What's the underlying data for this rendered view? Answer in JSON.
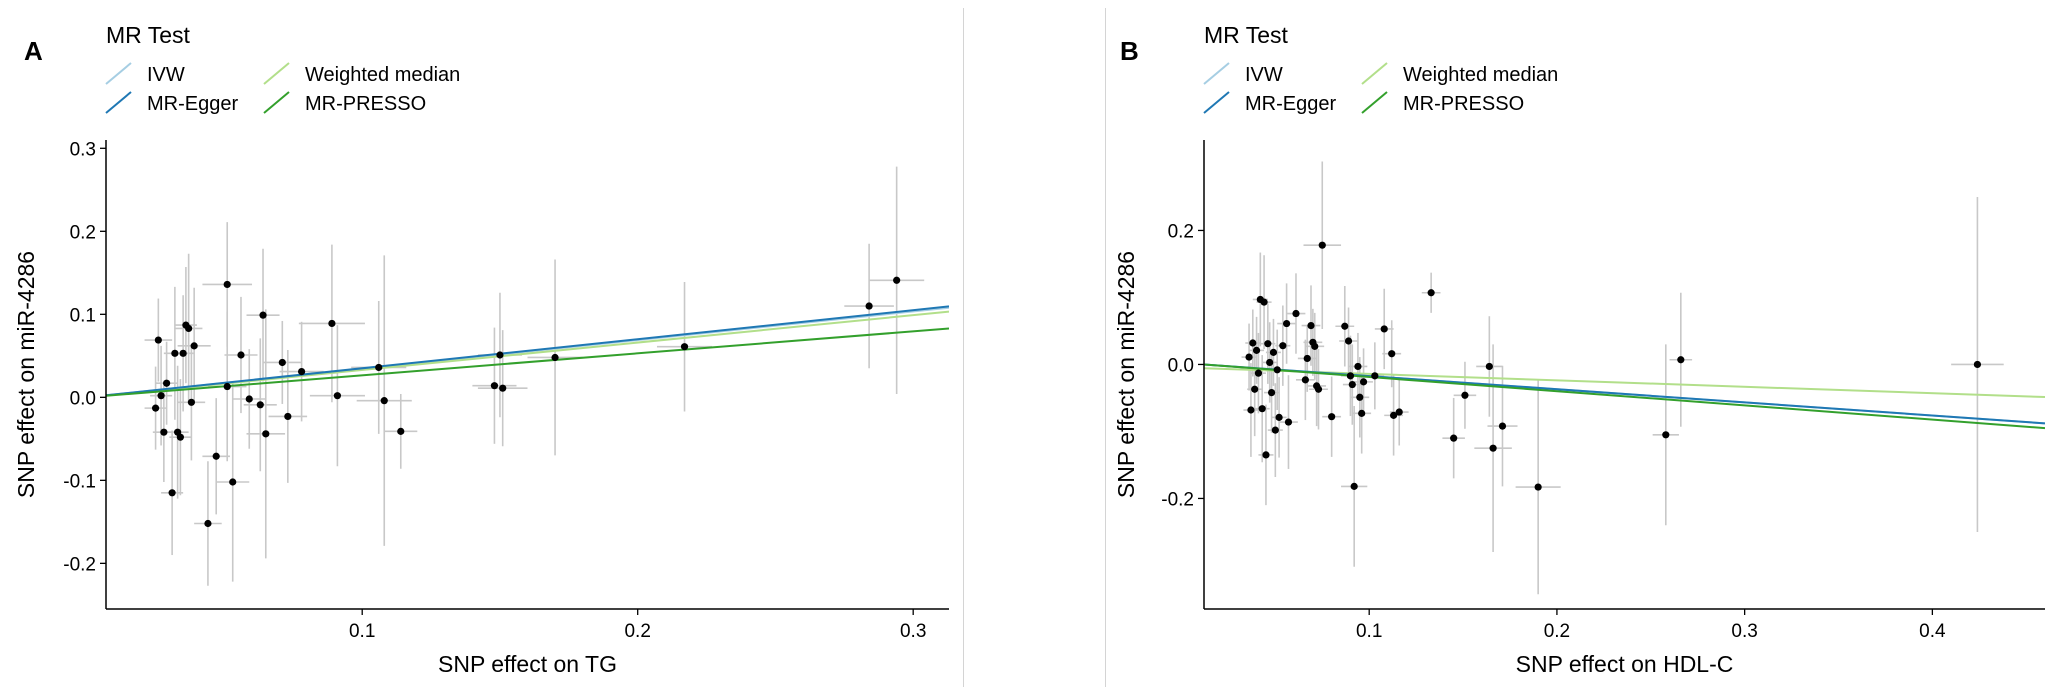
{
  "legend": {
    "title": "MR Test",
    "items": [
      {
        "label": "IVW",
        "color": "#a6cee3"
      },
      {
        "label": "Weighted median",
        "color": "#b2df8a"
      },
      {
        "label": "MR-Egger",
        "color": "#1f78b4"
      },
      {
        "label": "MR-PRESSO",
        "color": "#33a02c"
      }
    ]
  },
  "chart_data": [
    {
      "type": "scatter",
      "panel_label": "A",
      "xlabel": "SNP effect on TG",
      "ylabel": "SNP effect on miR-4286",
      "xlim": [
        0.007,
        0.313
      ],
      "ylim": [
        -0.255,
        0.31
      ],
      "xticks": [
        0.1,
        0.2,
        0.3
      ],
      "yticks": [
        -0.2,
        -0.1,
        0.0,
        0.1,
        0.2,
        0.3
      ],
      "grid": false,
      "legend_position": "top-left",
      "error_bar_color": "#c8c8c8",
      "lines": [
        {
          "name": "IVW",
          "intercept": 0,
          "slope": 0.345,
          "color": "#a6cee3"
        },
        {
          "name": "Weighted median",
          "intercept": 0,
          "slope": 0.33,
          "color": "#b2df8a"
        },
        {
          "name": "MR-Egger",
          "intercept": 0,
          "slope": 0.35,
          "color": "#1f78b4"
        },
        {
          "name": "MR-PRESSO",
          "intercept": 0,
          "slope": 0.265,
          "color": "#33a02c"
        }
      ],
      "points": [
        {
          "x": 0.025,
          "y": -0.013,
          "xerr": 0.004,
          "yerr": 0.05
        },
        {
          "x": 0.026,
          "y": 0.069,
          "xerr": 0.005,
          "yerr": 0.05
        },
        {
          "x": 0.027,
          "y": 0.002,
          "xerr": 0.004,
          "yerr": 0.06
        },
        {
          "x": 0.028,
          "y": -0.042,
          "xerr": 0.004,
          "yerr": 0.06
        },
        {
          "x": 0.029,
          "y": 0.017,
          "xerr": 0.004,
          "yerr": 0.05
        },
        {
          "x": 0.031,
          "y": -0.115,
          "xerr": 0.004,
          "yerr": 0.075
        },
        {
          "x": 0.032,
          "y": 0.053,
          "xerr": 0.004,
          "yerr": 0.08
        },
        {
          "x": 0.033,
          "y": -0.042,
          "xerr": 0.004,
          "yerr": 0.08
        },
        {
          "x": 0.034,
          "y": -0.048,
          "xerr": 0.004,
          "yerr": 0.07
        },
        {
          "x": 0.035,
          "y": 0.053,
          "xerr": 0.004,
          "yerr": 0.07
        },
        {
          "x": 0.036,
          "y": 0.087,
          "xerr": 0.004,
          "yerr": 0.07
        },
        {
          "x": 0.037,
          "y": 0.083,
          "xerr": 0.005,
          "yerr": 0.09
        },
        {
          "x": 0.038,
          "y": -0.006,
          "xerr": 0.005,
          "yerr": 0.07
        },
        {
          "x": 0.039,
          "y": 0.062,
          "xerr": 0.006,
          "yerr": 0.07
        },
        {
          "x": 0.044,
          "y": -0.152,
          "xerr": 0.005,
          "yerr": 0.075
        },
        {
          "x": 0.047,
          "y": -0.071,
          "xerr": 0.005,
          "yerr": 0.07
        },
        {
          "x": 0.051,
          "y": 0.136,
          "xerr": 0.009,
          "yerr": 0.075
        },
        {
          "x": 0.051,
          "y": 0.013,
          "xerr": 0.007,
          "yerr": 0.09
        },
        {
          "x": 0.053,
          "y": -0.102,
          "xerr": 0.006,
          "yerr": 0.12
        },
        {
          "x": 0.056,
          "y": 0.051,
          "xerr": 0.006,
          "yerr": 0.07
        },
        {
          "x": 0.059,
          "y": -0.002,
          "xerr": 0.006,
          "yerr": 0.06
        },
        {
          "x": 0.063,
          "y": -0.009,
          "xerr": 0.006,
          "yerr": 0.08
        },
        {
          "x": 0.064,
          "y": 0.099,
          "xerr": 0.006,
          "yerr": 0.08
        },
        {
          "x": 0.065,
          "y": -0.044,
          "xerr": 0.007,
          "yerr": 0.15
        },
        {
          "x": 0.071,
          "y": 0.042,
          "xerr": 0.007,
          "yerr": 0.05
        },
        {
          "x": 0.073,
          "y": -0.023,
          "xerr": 0.007,
          "yerr": 0.08
        },
        {
          "x": 0.078,
          "y": 0.031,
          "xerr": 0.008,
          "yerr": 0.06
        },
        {
          "x": 0.089,
          "y": 0.089,
          "xerr": 0.012,
          "yerr": 0.095
        },
        {
          "x": 0.091,
          "y": 0.002,
          "xerr": 0.01,
          "yerr": 0.085
        },
        {
          "x": 0.106,
          "y": 0.036,
          "xerr": 0.01,
          "yerr": 0.08
        },
        {
          "x": 0.108,
          "y": -0.004,
          "xerr": 0.01,
          "yerr": 0.175
        },
        {
          "x": 0.114,
          "y": -0.041,
          "xerr": 0.006,
          "yerr": 0.045
        },
        {
          "x": 0.148,
          "y": 0.014,
          "xerr": 0.008,
          "yerr": 0.07
        },
        {
          "x": 0.15,
          "y": 0.051,
          "xerr": 0.008,
          "yerr": 0.075
        },
        {
          "x": 0.151,
          "y": 0.011,
          "xerr": 0.009,
          "yerr": 0.07
        },
        {
          "x": 0.17,
          "y": 0.048,
          "xerr": 0.01,
          "yerr": 0.118
        },
        {
          "x": 0.217,
          "y": 0.061,
          "xerr": 0.01,
          "yerr": 0.078
        },
        {
          "x": 0.284,
          "y": 0.11,
          "xerr": 0.009,
          "yerr": 0.075
        },
        {
          "x": 0.294,
          "y": 0.141,
          "xerr": 0.01,
          "yerr": 0.137
        }
      ]
    },
    {
      "type": "scatter",
      "panel_label": "B",
      "xlabel": "SNP effect on HDL-C",
      "ylabel": "SNP effect on miR-4286",
      "xlim": [
        0.012,
        0.46
      ],
      "ylim": [
        -0.365,
        0.335
      ],
      "xticks": [
        0.1,
        0.2,
        0.3,
        0.4
      ],
      "yticks": [
        -0.2,
        0.0,
        0.2
      ],
      "grid": false,
      "legend_position": "top-left",
      "error_bar_color": "#c8c8c8",
      "lines": [
        {
          "name": "IVW",
          "intercept": 0.0022,
          "slope": -0.196,
          "color": "#a6cee3"
        },
        {
          "name": "Weighted median",
          "intercept": -0.0045,
          "slope": -0.096,
          "color": "#b2df8a"
        },
        {
          "name": "MR-Egger",
          "intercept": 0.0022,
          "slope": -0.196,
          "color": "#1f78b4"
        },
        {
          "name": "MR-PRESSO",
          "intercept": 0.0025,
          "slope": -0.212,
          "color": "#33a02c"
        }
      ],
      "points": [
        {
          "x": 0.036,
          "y": 0.011,
          "xerr": 0.004,
          "yerr": 0.05
        },
        {
          "x": 0.037,
          "y": -0.068,
          "xerr": 0.004,
          "yerr": 0.07
        },
        {
          "x": 0.038,
          "y": 0.032,
          "xerr": 0.004,
          "yerr": 0.05
        },
        {
          "x": 0.039,
          "y": -0.037,
          "xerr": 0.004,
          "yerr": 0.07
        },
        {
          "x": 0.04,
          "y": 0.021,
          "xerr": 0.004,
          "yerr": 0.05
        },
        {
          "x": 0.041,
          "y": -0.013,
          "xerr": 0.004,
          "yerr": 0.06
        },
        {
          "x": 0.042,
          "y": 0.097,
          "xerr": 0.004,
          "yerr": 0.07
        },
        {
          "x": 0.043,
          "y": -0.066,
          "xerr": 0.004,
          "yerr": 0.08
        },
        {
          "x": 0.044,
          "y": 0.093,
          "xerr": 0.004,
          "yerr": 0.07
        },
        {
          "x": 0.045,
          "y": -0.135,
          "xerr": 0.004,
          "yerr": 0.075
        },
        {
          "x": 0.046,
          "y": 0.031,
          "xerr": 0.004,
          "yerr": 0.06
        },
        {
          "x": 0.047,
          "y": 0.003,
          "xerr": 0.004,
          "yerr": 0.06
        },
        {
          "x": 0.048,
          "y": -0.042,
          "xerr": 0.004,
          "yerr": 0.06
        },
        {
          "x": 0.049,
          "y": 0.018,
          "xerr": 0.004,
          "yerr": 0.05
        },
        {
          "x": 0.05,
          "y": -0.098,
          "xerr": 0.004,
          "yerr": 0.07
        },
        {
          "x": 0.051,
          "y": -0.008,
          "xerr": 0.004,
          "yerr": 0.06
        },
        {
          "x": 0.052,
          "y": -0.079,
          "xerr": 0.004,
          "yerr": 0.06
        },
        {
          "x": 0.054,
          "y": 0.028,
          "xerr": 0.004,
          "yerr": 0.06
        },
        {
          "x": 0.056,
          "y": 0.061,
          "xerr": 0.005,
          "yerr": 0.06
        },
        {
          "x": 0.057,
          "y": -0.086,
          "xerr": 0.005,
          "yerr": 0.07
        },
        {
          "x": 0.061,
          "y": 0.076,
          "xerr": 0.005,
          "yerr": 0.06
        },
        {
          "x": 0.066,
          "y": -0.023,
          "xerr": 0.005,
          "yerr": 0.06
        },
        {
          "x": 0.067,
          "y": 0.009,
          "xerr": 0.005,
          "yerr": 0.05
        },
        {
          "x": 0.069,
          "y": 0.058,
          "xerr": 0.005,
          "yerr": 0.06
        },
        {
          "x": 0.07,
          "y": 0.033,
          "xerr": 0.005,
          "yerr": 0.05
        },
        {
          "x": 0.071,
          "y": 0.027,
          "xerr": 0.005,
          "yerr": 0.05
        },
        {
          "x": 0.072,
          "y": -0.032,
          "xerr": 0.005,
          "yerr": 0.06
        },
        {
          "x": 0.073,
          "y": -0.037,
          "xerr": 0.005,
          "yerr": 0.06
        },
        {
          "x": 0.075,
          "y": 0.178,
          "xerr": 0.01,
          "yerr": 0.125
        },
        {
          "x": 0.08,
          "y": -0.078,
          "xerr": 0.005,
          "yerr": 0.06
        },
        {
          "x": 0.087,
          "y": 0.057,
          "xerr": 0.005,
          "yerr": 0.06
        },
        {
          "x": 0.089,
          "y": 0.035,
          "xerr": 0.005,
          "yerr": 0.05
        },
        {
          "x": 0.09,
          "y": -0.017,
          "xerr": 0.005,
          "yerr": 0.06
        },
        {
          "x": 0.091,
          "y": -0.03,
          "xerr": 0.005,
          "yerr": 0.06
        },
        {
          "x": 0.092,
          "y": -0.182,
          "xerr": 0.007,
          "yerr": 0.12
        },
        {
          "x": 0.094,
          "y": -0.003,
          "xerr": 0.005,
          "yerr": 0.05
        },
        {
          "x": 0.095,
          "y": -0.049,
          "xerr": 0.005,
          "yerr": 0.06
        },
        {
          "x": 0.096,
          "y": -0.073,
          "xerr": 0.005,
          "yerr": 0.06
        },
        {
          "x": 0.097,
          "y": -0.026,
          "xerr": 0.005,
          "yerr": 0.05
        },
        {
          "x": 0.103,
          "y": -0.017,
          "xerr": 0.005,
          "yerr": 0.05
        },
        {
          "x": 0.108,
          "y": 0.053,
          "xerr": 0.005,
          "yerr": 0.06
        },
        {
          "x": 0.112,
          "y": 0.016,
          "xerr": 0.005,
          "yerr": 0.05
        },
        {
          "x": 0.113,
          "y": -0.076,
          "xerr": 0.005,
          "yerr": 0.06
        },
        {
          "x": 0.116,
          "y": -0.071,
          "xerr": 0.005,
          "yerr": 0.05
        },
        {
          "x": 0.133,
          "y": 0.107,
          "xerr": 0.005,
          "yerr": 0.03
        },
        {
          "x": 0.145,
          "y": -0.11,
          "xerr": 0.006,
          "yerr": 0.06
        },
        {
          "x": 0.151,
          "y": -0.046,
          "xerr": 0.006,
          "yerr": 0.05
        },
        {
          "x": 0.164,
          "y": -0.003,
          "xerr": 0.007,
          "yerr": 0.075
        },
        {
          "x": 0.166,
          "y": -0.125,
          "xerr": 0.01,
          "yerr": 0.155
        },
        {
          "x": 0.171,
          "y": -0.092,
          "xerr": 0.008,
          "yerr": 0.09
        },
        {
          "x": 0.19,
          "y": -0.183,
          "xerr": 0.012,
          "yerr": 0.16
        },
        {
          "x": 0.258,
          "y": -0.105,
          "xerr": 0.007,
          "yerr": 0.135
        },
        {
          "x": 0.266,
          "y": 0.007,
          "xerr": 0.006,
          "yerr": 0.1
        },
        {
          "x": 0.424,
          "y": 0.0,
          "xerr": 0.014,
          "yerr": 0.25
        }
      ]
    }
  ]
}
